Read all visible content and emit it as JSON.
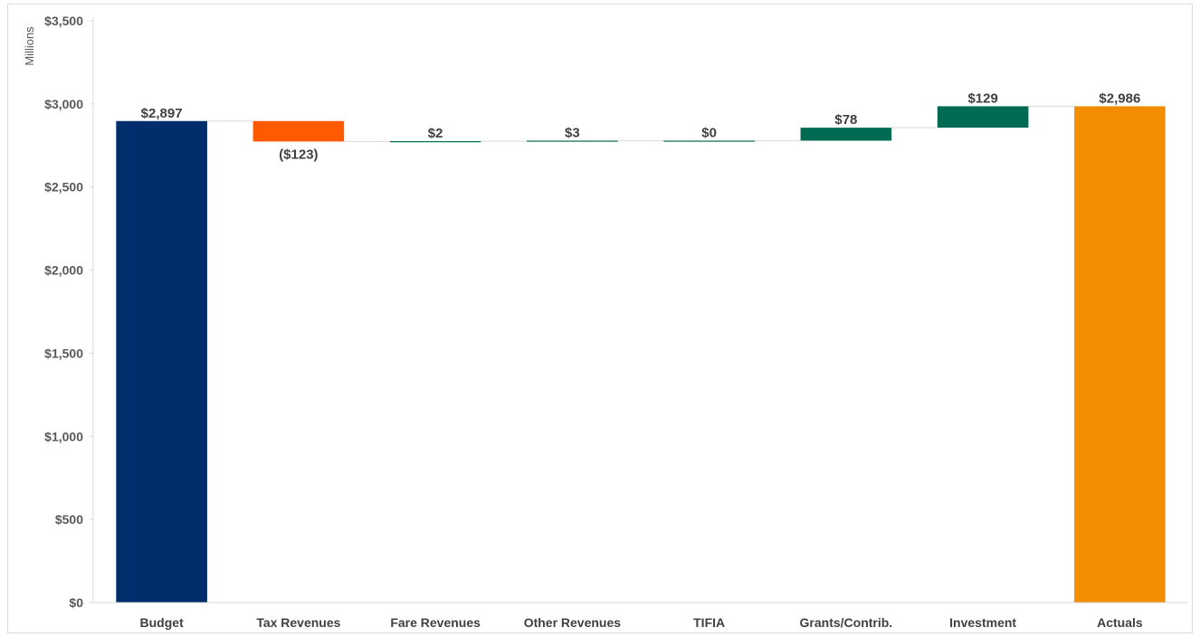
{
  "chart_data": {
    "type": "bar",
    "subtype": "waterfall",
    "title": "",
    "ylabel": "Millions",
    "xlabel": "",
    "ylim": [
      0,
      3500
    ],
    "yticks": [
      0,
      500,
      1000,
      1500,
      2000,
      2500,
      3000,
      3500
    ],
    "ytick_labels": [
      "$0",
      "$500",
      "$1,000",
      "$1,500",
      "$2,000",
      "$2,500",
      "$3,000",
      "$3,500"
    ],
    "grid": false,
    "legend": "none",
    "categories": [
      "Budget",
      "Tax Revenues",
      "Fare Revenues",
      "Other Revenues",
      "TIFIA",
      "Grants/Contrib.",
      "Investment",
      "Actuals"
    ],
    "values": [
      2897,
      -123,
      2,
      3,
      0,
      78,
      129,
      2986
    ],
    "kinds": [
      "total",
      "delta",
      "delta",
      "delta",
      "delta",
      "delta",
      "delta",
      "total"
    ],
    "data_labels": [
      "$2,897",
      "($123)",
      "$2",
      "$3",
      "$0",
      "$78",
      "$129",
      "$2,986"
    ],
    "colors": {
      "budget": "#002d6b",
      "decrease": "#ff5a00",
      "increase": "#006b52",
      "actuals": "#f28c00",
      "connector": "#d9d9d9",
      "axis": "#d9d9d9"
    }
  }
}
